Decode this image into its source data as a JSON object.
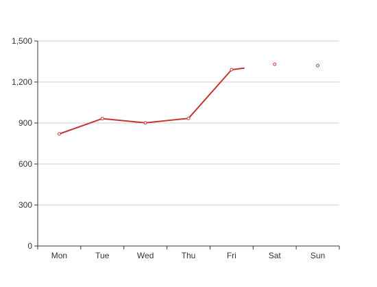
{
  "chart_data": {
    "type": "line",
    "categories": [
      "Mon",
      "Tue",
      "Wed",
      "Thu",
      "Fri",
      "Sat",
      "Sun"
    ],
    "yticks": [
      "0",
      "300",
      "600",
      "900",
      "1,200",
      "1,500"
    ],
    "ylim": [
      0,
      1500
    ],
    "grid": true,
    "series": [
      {
        "color": "#c23531",
        "values": [
          820,
          932,
          901,
          934,
          1290,
          1330,
          1320
        ],
        "line_end": 4.3
      }
    ],
    "title": "",
    "xlabel": "",
    "ylabel": ""
  }
}
